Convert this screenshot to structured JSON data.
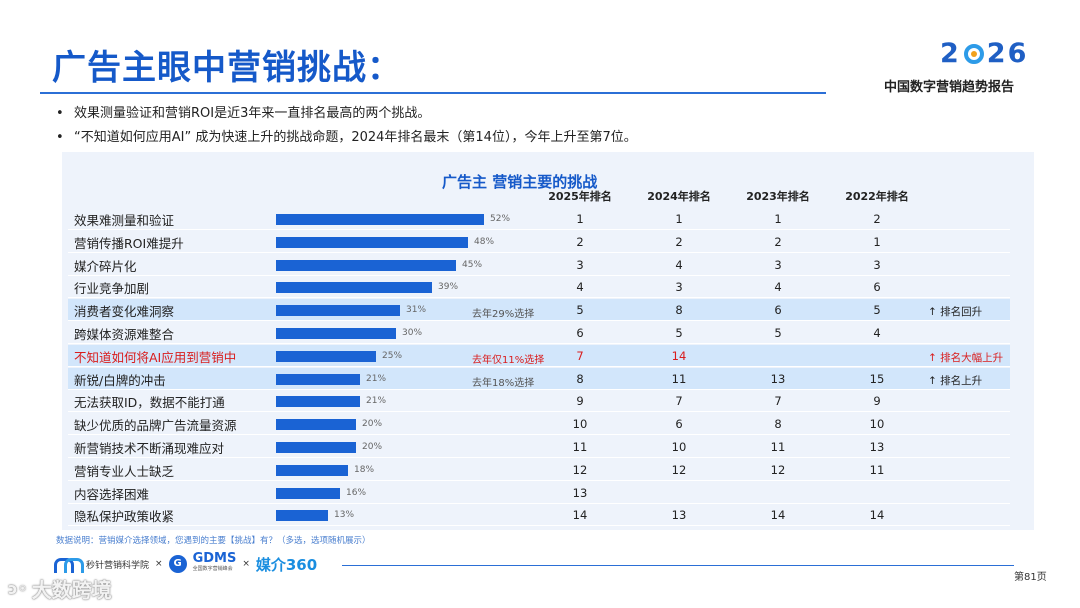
{
  "title": "广告主眼中营销挑战：",
  "brand": {
    "year_left": "2",
    "year_right": "26",
    "subtitle": "中国数字营销趋势报告"
  },
  "bullets": [
    "效果测量验证和营销ROI是近3年来一直排名最高的两个挑战。",
    "“不知道如何应用AI” 成为快速上升的挑战命题，2024年排名最末（第14位），今年上升至第7位。"
  ],
  "chart_data": {
    "type": "bar",
    "title": "广告主 营销主要的挑战",
    "orientation": "horizontal",
    "columns": [
      "2025年排名",
      "2024年排名",
      "2023年排名",
      "2022年排名"
    ],
    "rows": [
      {
        "label": "效果难测量和验证",
        "value": 52,
        "value_label": "52%",
        "ranks": [
          "1",
          "1",
          "1",
          "2"
        ],
        "note": "",
        "trend": "",
        "highlight": false,
        "red": false
      },
      {
        "label": "营销传播ROI难提升",
        "value": 48,
        "value_label": "48%",
        "ranks": [
          "2",
          "2",
          "2",
          "1"
        ],
        "note": "",
        "trend": "",
        "highlight": false,
        "red": false
      },
      {
        "label": "媒介碎片化",
        "value": 45,
        "value_label": "45%",
        "ranks": [
          "3",
          "4",
          "3",
          "3"
        ],
        "note": "",
        "trend": "",
        "highlight": false,
        "red": false
      },
      {
        "label": "行业竞争加剧",
        "value": 39,
        "value_label": "39%",
        "ranks": [
          "4",
          "3",
          "4",
          "6"
        ],
        "note": "",
        "trend": "",
        "highlight": false,
        "red": false
      },
      {
        "label": "消费者变化难洞察",
        "value": 31,
        "value_label": "31%",
        "ranks": [
          "5",
          "8",
          "6",
          "5"
        ],
        "note": "去年29%选择",
        "trend": "↑ 排名回升",
        "highlight": true,
        "red": false
      },
      {
        "label": "跨媒体资源难整合",
        "value": 30,
        "value_label": "30%",
        "ranks": [
          "6",
          "5",
          "5",
          "4"
        ],
        "note": "",
        "trend": "",
        "highlight": false,
        "red": false
      },
      {
        "label": "不知道如何将AI应用到营销中",
        "value": 25,
        "value_label": "25%",
        "ranks": [
          "7",
          "14",
          "",
          ""
        ],
        "note": "去年仅11%选择",
        "trend": "↑ 排名大幅上升",
        "highlight": true,
        "red": true
      },
      {
        "label": "新锐/白牌的冲击",
        "value": 21,
        "value_label": "21%",
        "ranks": [
          "8",
          "11",
          "13",
          "15"
        ],
        "note": "去年18%选择",
        "trend": "↑ 排名上升",
        "highlight": true,
        "red": false
      },
      {
        "label": "无法获取ID，数据不能打通",
        "value": 21,
        "value_label": "21%",
        "ranks": [
          "9",
          "7",
          "7",
          "9"
        ],
        "note": "",
        "trend": "",
        "highlight": false,
        "red": false
      },
      {
        "label": "缺少优质的品牌广告流量资源",
        "value": 20,
        "value_label": "20%",
        "ranks": [
          "10",
          "6",
          "8",
          "10"
        ],
        "note": "",
        "trend": "",
        "highlight": false,
        "red": false
      },
      {
        "label": "新营销技术不断涌现难应对",
        "value": 20,
        "value_label": "20%",
        "ranks": [
          "11",
          "10",
          "11",
          "13"
        ],
        "note": "",
        "trend": "",
        "highlight": false,
        "red": false
      },
      {
        "label": "营销专业人士缺乏",
        "value": 18,
        "value_label": "18%",
        "ranks": [
          "12",
          "12",
          "12",
          "11"
        ],
        "note": "",
        "trend": "",
        "highlight": false,
        "red": false
      },
      {
        "label": "内容选择困难",
        "value": 16,
        "value_label": "16%",
        "ranks": [
          "13",
          "",
          "",
          ""
        ],
        "note": "",
        "trend": "",
        "highlight": false,
        "red": false
      },
      {
        "label": "隐私保护政策收紧",
        "value": 13,
        "value_label": "13%",
        "ranks": [
          "14",
          "13",
          "14",
          "14"
        ],
        "note": "",
        "trend": "",
        "highlight": false,
        "red": false
      }
    ]
  },
  "footnote": "数据说明：营销媒介选择领域，您遇到的主要【挑战】有？（多选，选项随机展示）",
  "logos": {
    "miaozhen": "秒针营销科学院",
    "gdms_icon": "G",
    "gdms": "GDMS",
    "gdms_sub": "全国数字营销峰会",
    "times": "×",
    "meijie": "媒介360"
  },
  "page": "第81页",
  "watermark": "大数跨境"
}
